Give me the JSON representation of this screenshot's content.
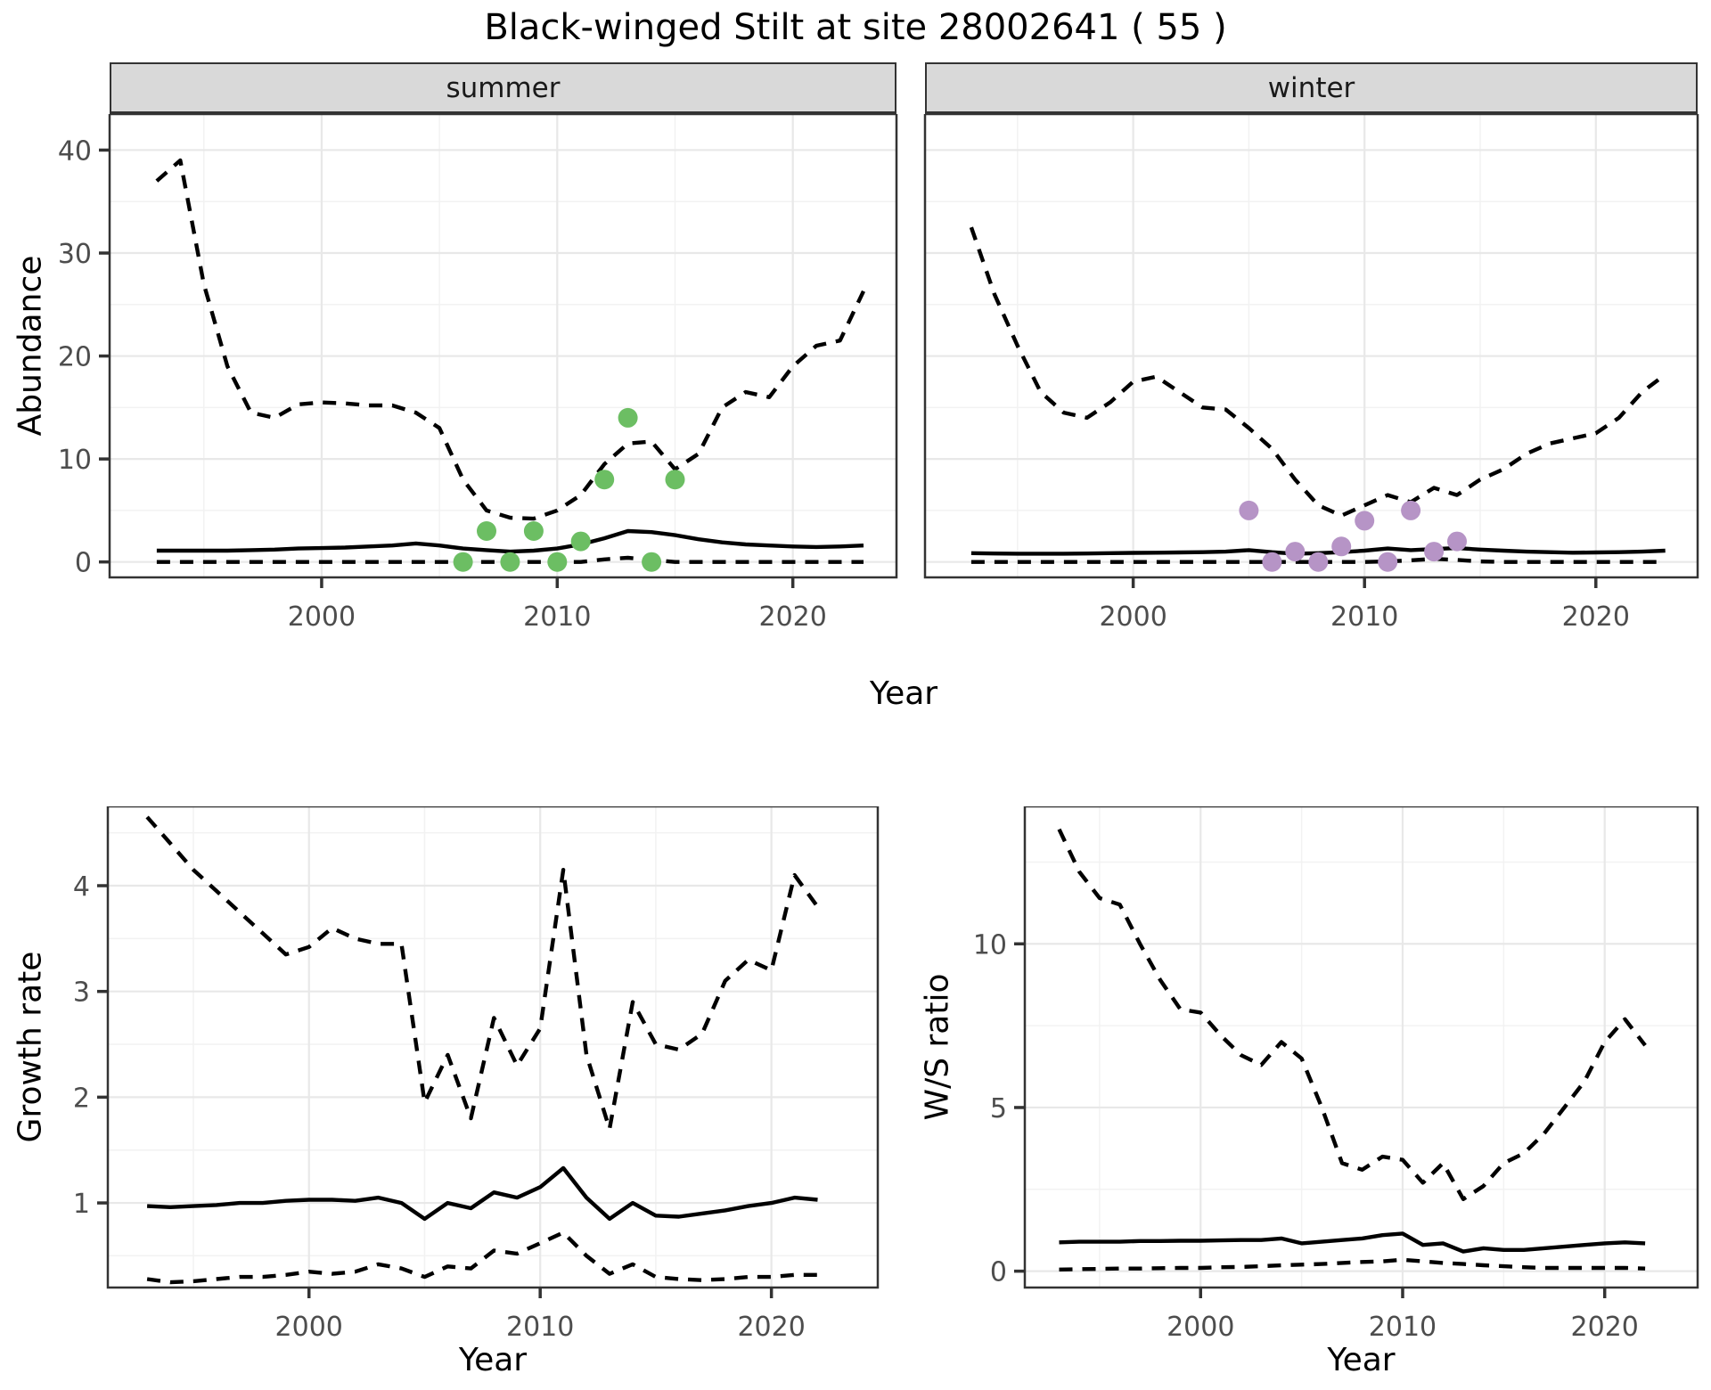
{
  "title": "Black-winged Stilt at site 28002641 ( 55 )",
  "site_id": "28002641",
  "site_code": "55",
  "species": "Black-winged Stilt",
  "colors": {
    "line": "#000000",
    "grid_major": "#E8E8E8",
    "grid_minor": "#F2F2F2",
    "panel_border": "#333333",
    "axis_text": "#4D4D4D",
    "strip_bg": "#D9D9D9",
    "summer_points": "#6CBE63",
    "winter_points": "#B694C6"
  },
  "chart_data": [
    {
      "id": "abundance-summer",
      "type": "line",
      "facet_label": "summer",
      "ylabel": "Abundance",
      "xlabel": "Year",
      "xlim": [
        1991,
        2024.4
      ],
      "ylim": [
        -1.5,
        43.5
      ],
      "xticks": [
        2000,
        2010,
        2020
      ],
      "yticks": [
        0,
        10,
        20,
        30,
        40
      ],
      "grid": true,
      "legend": "none",
      "x": [
        1993,
        1994,
        1995,
        1996,
        1997,
        1998,
        1999,
        2000,
        2001,
        2002,
        2003,
        2004,
        2005,
        2006,
        2007,
        2008,
        2009,
        2010,
        2011,
        2012,
        2013,
        2014,
        2015,
        2016,
        2017,
        2018,
        2019,
        2020,
        2021,
        2022,
        2023
      ],
      "series": [
        {
          "name": "upper-ci",
          "style": "dashed",
          "values": [
            37,
            39,
            27,
            19,
            14.5,
            14,
            15.3,
            15.5,
            15.4,
            15.2,
            15.2,
            14.5,
            13,
            8,
            5,
            4.3,
            4.2,
            5,
            6.5,
            9.5,
            11.5,
            11.7,
            9,
            10.5,
            15,
            16.5,
            16,
            19,
            21,
            21.5,
            26.3
          ]
        },
        {
          "name": "median",
          "style": "solid",
          "values": [
            1.1,
            1.1,
            1.1,
            1.1,
            1.15,
            1.2,
            1.3,
            1.35,
            1.4,
            1.5,
            1.6,
            1.8,
            1.6,
            1.3,
            1.15,
            1.0,
            1.1,
            1.3,
            1.7,
            2.3,
            3.0,
            2.9,
            2.6,
            2.2,
            1.9,
            1.7,
            1.6,
            1.5,
            1.45,
            1.5,
            1.6
          ]
        },
        {
          "name": "lower-ci",
          "style": "dashed",
          "values": [
            0,
            0,
            0,
            0,
            0,
            0,
            0,
            0,
            0,
            0,
            0,
            0,
            0,
            0,
            0,
            0,
            0,
            0,
            0,
            0.25,
            0.4,
            0.2,
            0,
            0,
            0,
            0,
            0,
            0,
            0,
            0,
            0
          ]
        }
      ],
      "points": {
        "name": "observed-counts-summer",
        "color": "#6CBE63",
        "x": [
          2006,
          2007,
          2008,
          2009,
          2010,
          2011,
          2012,
          2013,
          2014,
          2015
        ],
        "y": [
          0,
          3,
          0,
          3,
          0,
          2,
          8,
          14,
          0,
          8
        ]
      }
    },
    {
      "id": "abundance-winter",
      "type": "line",
      "facet_label": "winter",
      "ylabel": "Abundance",
      "xlabel": "Year",
      "xlim": [
        1991,
        2024.4
      ],
      "ylim": [
        -1.5,
        43.5
      ],
      "xticks": [
        2000,
        2010,
        2020
      ],
      "yticks": [
        0,
        10,
        20,
        30,
        40
      ],
      "grid": true,
      "legend": "none",
      "x": [
        1993,
        1994,
        1995,
        1996,
        1997,
        1998,
        1999,
        2000,
        2001,
        2002,
        2003,
        2004,
        2005,
        2006,
        2007,
        2008,
        2009,
        2010,
        2011,
        2012,
        2013,
        2014,
        2015,
        2016,
        2017,
        2018,
        2019,
        2020,
        2021,
        2022,
        2023
      ],
      "series": [
        {
          "name": "upper-ci",
          "style": "dashed",
          "values": [
            32.5,
            26,
            21,
            16.5,
            14.5,
            14,
            15.5,
            17.5,
            18,
            16.5,
            15,
            14.8,
            13,
            11,
            8,
            5.5,
            4.5,
            5.5,
            6.5,
            5.8,
            7.2,
            6.5,
            8,
            9,
            10.5,
            11.5,
            12,
            12.5,
            14,
            16.5,
            18.2
          ]
        },
        {
          "name": "median",
          "style": "solid",
          "values": [
            0.85,
            0.82,
            0.8,
            0.8,
            0.8,
            0.82,
            0.85,
            0.88,
            0.9,
            0.92,
            0.95,
            1.0,
            1.15,
            0.95,
            0.8,
            0.85,
            0.95,
            1.1,
            1.3,
            1.15,
            1.25,
            1.35,
            1.2,
            1.1,
            1.0,
            0.95,
            0.9,
            0.92,
            0.95,
            1.0,
            1.1
          ]
        },
        {
          "name": "lower-ci",
          "style": "dashed",
          "values": [
            0,
            0,
            0,
            0,
            0,
            0,
            0,
            0,
            0,
            0,
            0,
            0,
            0,
            0,
            0,
            0,
            0,
            0,
            0.05,
            0.15,
            0.3,
            0.2,
            0.05,
            0,
            0,
            0,
            0,
            0,
            0,
            0,
            0
          ]
        }
      ],
      "points": {
        "name": "observed-counts-winter",
        "color": "#B694C6",
        "x": [
          2005,
          2006,
          2007,
          2008,
          2009,
          2010,
          2011,
          2012,
          2013,
          2014
        ],
        "y": [
          5,
          0,
          1,
          0,
          1.5,
          4,
          0,
          5,
          1,
          2
        ]
      }
    },
    {
      "id": "growth-rate",
      "type": "line",
      "facet_label": "",
      "ylabel": "Growth rate",
      "xlabel": "Year",
      "xlim": [
        1991.3,
        2024.6
      ],
      "ylim": [
        0.2,
        4.75
      ],
      "xticks": [
        2000,
        2010,
        2020
      ],
      "yticks": [
        1,
        2,
        3,
        4
      ],
      "grid": true,
      "legend": "none",
      "x": [
        1993,
        1994,
        1995,
        1996,
        1997,
        1998,
        1999,
        2000,
        2001,
        2002,
        2003,
        2004,
        2005,
        2006,
        2007,
        2008,
        2009,
        2010,
        2011,
        2012,
        2013,
        2014,
        2015,
        2016,
        2017,
        2018,
        2019,
        2020,
        2021,
        2022
      ],
      "series": [
        {
          "name": "upper-ci",
          "style": "dashed",
          "values": [
            4.65,
            4.4,
            4.15,
            3.95,
            3.75,
            3.55,
            3.35,
            3.42,
            3.6,
            3.5,
            3.45,
            3.45,
            1.95,
            2.4,
            1.8,
            2.75,
            2.3,
            2.65,
            4.15,
            2.4,
            1.7,
            2.9,
            2.5,
            2.45,
            2.6,
            3.1,
            3.3,
            3.2,
            4.1,
            3.8
          ]
        },
        {
          "name": "median",
          "style": "solid",
          "values": [
            0.97,
            0.96,
            0.97,
            0.98,
            1.0,
            1.0,
            1.02,
            1.03,
            1.03,
            1.02,
            1.05,
            1.0,
            0.85,
            1.0,
            0.95,
            1.1,
            1.05,
            1.15,
            1.33,
            1.05,
            0.85,
            1.0,
            0.88,
            0.87,
            0.9,
            0.93,
            0.97,
            1.0,
            1.05,
            1.03
          ]
        },
        {
          "name": "lower-ci",
          "style": "dashed",
          "values": [
            0.28,
            0.25,
            0.26,
            0.28,
            0.3,
            0.3,
            0.32,
            0.35,
            0.33,
            0.35,
            0.42,
            0.38,
            0.3,
            0.4,
            0.38,
            0.55,
            0.52,
            0.62,
            0.72,
            0.5,
            0.33,
            0.42,
            0.3,
            0.28,
            0.27,
            0.28,
            0.3,
            0.3,
            0.32,
            0.32
          ]
        }
      ]
    },
    {
      "id": "ws-ratio",
      "type": "line",
      "facet_label": "",
      "ylabel": "W/S ratio",
      "xlabel": "Year",
      "xlim": [
        1991.3,
        2024.6
      ],
      "ylim": [
        -0.5,
        14.2
      ],
      "xticks": [
        2000,
        2010,
        2020
      ],
      "yticks": [
        0,
        5,
        10
      ],
      "grid": true,
      "legend": "none",
      "x": [
        1993,
        1994,
        1995,
        1996,
        1997,
        1998,
        1999,
        2000,
        2001,
        2002,
        2003,
        2004,
        2005,
        2006,
        2007,
        2008,
        2009,
        2010,
        2011,
        2012,
        2013,
        2014,
        2015,
        2016,
        2017,
        2018,
        2019,
        2020,
        2021,
        2022
      ],
      "series": [
        {
          "name": "upper-ci",
          "style": "dashed",
          "values": [
            13.5,
            12.2,
            11.4,
            11.2,
            10,
            8.9,
            8,
            7.9,
            7.2,
            6.6,
            6.3,
            7,
            6.5,
            5,
            3.3,
            3.1,
            3.5,
            3.4,
            2.7,
            3.3,
            2.2,
            2.6,
            3.3,
            3.6,
            4.2,
            5,
            5.8,
            7,
            7.7,
            6.9
          ]
        },
        {
          "name": "median",
          "style": "solid",
          "values": [
            0.88,
            0.9,
            0.9,
            0.9,
            0.92,
            0.92,
            0.93,
            0.93,
            0.94,
            0.95,
            0.95,
            1.0,
            0.85,
            0.9,
            0.95,
            1.0,
            1.1,
            1.15,
            0.8,
            0.85,
            0.6,
            0.7,
            0.65,
            0.65,
            0.7,
            0.75,
            0.8,
            0.85,
            0.88,
            0.85
          ]
        },
        {
          "name": "lower-ci",
          "style": "dashed",
          "values": [
            0.05,
            0.06,
            0.07,
            0.08,
            0.08,
            0.09,
            0.1,
            0.1,
            0.12,
            0.13,
            0.15,
            0.18,
            0.2,
            0.22,
            0.25,
            0.28,
            0.3,
            0.35,
            0.3,
            0.25,
            0.22,
            0.18,
            0.15,
            0.12,
            0.1,
            0.1,
            0.1,
            0.1,
            0.1,
            0.08
          ]
        }
      ]
    }
  ]
}
